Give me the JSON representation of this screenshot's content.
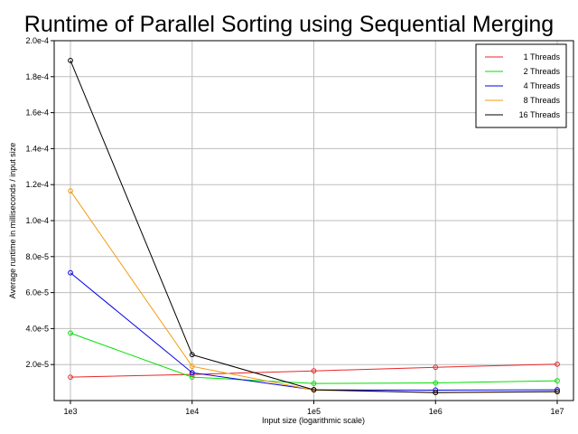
{
  "chart_data": {
    "type": "line",
    "title": "Runtime of Parallel Sorting using Sequential Merging",
    "xlabel": "Input size (logarithmic scale)",
    "ylabel": "Average runtime in milliseconds / input size",
    "x_scale": "log",
    "categories": [
      "1e3",
      "1e4",
      "1e5",
      "1e6",
      "1e7"
    ],
    "x": [
      1000,
      10000,
      100000,
      1000000,
      10000000
    ],
    "ylim": [
      0,
      0.0002
    ],
    "yticks": [
      2e-05,
      4e-05,
      6e-05,
      8e-05,
      0.0001,
      0.00012,
      0.00014,
      0.00016,
      0.00018,
      0.0002
    ],
    "ytick_labels": [
      "2.0e-5",
      "4.0e-5",
      "6.0e-5",
      "8.0e-5",
      "1.0e-4",
      "1.2e-4",
      "1.4e-4",
      "1.6e-4",
      "1.8e-4",
      "2.0e-4"
    ],
    "grid": true,
    "legend_position": "top-right",
    "series": [
      {
        "name": "1 Threads",
        "color": "#e8262a",
        "values": [
          1.3e-05,
          1.45e-05,
          1.65e-05,
          1.85e-05,
          2.02e-05
        ]
      },
      {
        "name": "2 Threads",
        "color": "#00e000",
        "values": [
          3.75e-05,
          1.3e-05,
          9.5e-06,
          9.8e-06,
          1.1e-05
        ]
      },
      {
        "name": "4 Threads",
        "color": "#0000e0",
        "values": [
          7.1e-05,
          1.55e-05,
          6e-06,
          5.8e-06,
          6e-06
        ]
      },
      {
        "name": "8 Threads",
        "color": "#f39c12",
        "values": [
          0.0001165,
          1.9e-05,
          5.8e-06,
          4.5e-06,
          4.8e-06
        ]
      },
      {
        "name": "16 Threads",
        "color": "#000000",
        "values": [
          0.000189,
          2.55e-05,
          6e-06,
          4.4e-06,
          5e-06
        ]
      }
    ]
  }
}
